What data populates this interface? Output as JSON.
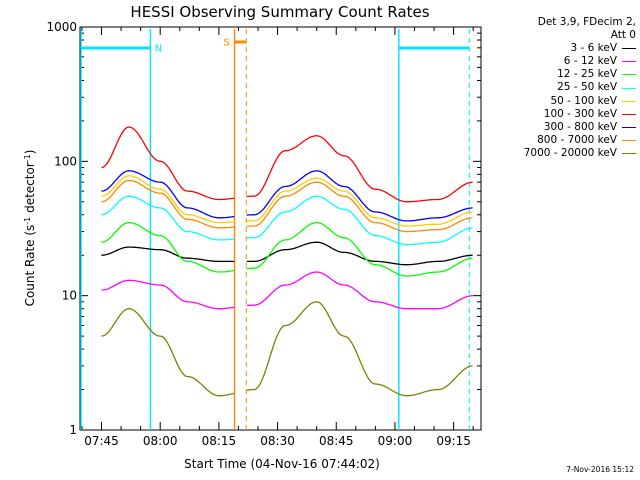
{
  "chart_data": {
    "type": "line",
    "title": "HESSI Observing Summary Count Rates",
    "xlabel": "Start Time (04-Nov-16 07:44:02)",
    "ylabel_main": "Count Rate (s",
    "ylabel_sup1": "-1",
    "ylabel_mid": " detector",
    "ylabel_sup2": "-1",
    "ylabel_end": ")",
    "yscale": "log",
    "ylim": [
      1,
      1000
    ],
    "xlim_minutes": [
      -5.5,
      97
    ],
    "x_ticks": [
      "07:45",
      "08:00",
      "08:15",
      "08:30",
      "08:45",
      "09:00",
      "09:15"
    ],
    "y_ticks": [
      "1",
      "10",
      "100",
      "1000"
    ],
    "legend_header": [
      "Det 3,9, FDecim 2,",
      "Att 0"
    ],
    "series": [
      {
        "name": "3 - 6 keV",
        "color": "#000000",
        "x": [
          0,
          7,
          15,
          22,
          30,
          39,
          47,
          55,
          62,
          70,
          78,
          86,
          95
        ],
        "y": [
          20,
          23,
          22,
          19,
          18,
          18,
          22,
          25,
          21,
          18,
          17,
          18,
          20
        ]
      },
      {
        "name": "6 - 12 keV",
        "color": "#ff00ff",
        "x": [
          0,
          7,
          15,
          22,
          30,
          39,
          47,
          55,
          62,
          70,
          78,
          86,
          95
        ],
        "y": [
          11,
          13,
          12,
          9,
          8,
          8.5,
          12,
          15,
          12,
          9,
          8,
          8,
          10
        ]
      },
      {
        "name": "12 - 25 keV",
        "color": "#00ff00",
        "x": [
          0,
          7,
          15,
          22,
          30,
          39,
          47,
          55,
          62,
          70,
          78,
          86,
          95
        ],
        "y": [
          25,
          35,
          28,
          18,
          15,
          16,
          26,
          35,
          27,
          17,
          14,
          15,
          19
        ]
      },
      {
        "name": "25 - 50 keV",
        "color": "#00ffff",
        "x": [
          0,
          7,
          15,
          22,
          30,
          39,
          47,
          55,
          62,
          70,
          78,
          86,
          95
        ],
        "y": [
          40,
          55,
          45,
          30,
          26,
          27,
          42,
          55,
          44,
          28,
          24,
          25,
          32
        ]
      },
      {
        "name": "50 - 100 keV",
        "color": "#ffcc00",
        "x": [
          0,
          7,
          15,
          22,
          30,
          39,
          47,
          55,
          62,
          70,
          78,
          86,
          95
        ],
        "y": [
          55,
          78,
          62,
          40,
          35,
          36,
          60,
          75,
          60,
          38,
          33,
          34,
          42
        ]
      },
      {
        "name": "100 - 300 keV",
        "color": "#ff0000",
        "x": [
          0,
          7,
          15,
          22,
          30,
          39,
          47,
          55,
          62,
          70,
          78,
          86,
          95
        ],
        "y": [
          90,
          180,
          100,
          60,
          52,
          55,
          120,
          155,
          110,
          62,
          50,
          52,
          70
        ]
      },
      {
        "name": "300 - 800 keV",
        "color": "#0000ff",
        "x": [
          0,
          7,
          15,
          22,
          30,
          39,
          47,
          55,
          62,
          70,
          78,
          86,
          95
        ],
        "y": [
          60,
          85,
          70,
          45,
          38,
          40,
          65,
          85,
          65,
          42,
          36,
          38,
          45
        ]
      },
      {
        "name": "800 - 7000 keV",
        "color": "#ff8800",
        "x": [
          0,
          7,
          15,
          22,
          30,
          39,
          47,
          55,
          62,
          70,
          78,
          86,
          95
        ],
        "y": [
          50,
          72,
          58,
          37,
          32,
          33,
          55,
          70,
          55,
          35,
          30,
          31,
          38
        ]
      },
      {
        "name": "7000 - 20000 keV",
        "color": "#808000",
        "x": [
          0,
          7,
          15,
          22,
          30,
          39,
          47,
          55,
          62,
          70,
          78,
          86,
          95
        ],
        "y": [
          5,
          8,
          5,
          2.5,
          1.8,
          2,
          6,
          9,
          5,
          2.2,
          1.8,
          2,
          3
        ]
      }
    ],
    "annotations": [
      {
        "label": "N",
        "color": "#00e5ff",
        "bar_from": -5.5,
        "bar_to": 12.5,
        "line_at": 12.5,
        "dashed_at": 12.5
      },
      {
        "label": "S",
        "color": "#ff8800",
        "bar_from": 34,
        "bar_to": 37,
        "line_at": 34,
        "dashed_at": 37
      },
      {
        "label": "",
        "color": "#00e5ff",
        "bar_from": 76,
        "bar_to": 94,
        "line_at": 76,
        "dashed_at": 94
      }
    ],
    "grid": false,
    "legend_position": "right"
  },
  "footer_date": "7-Nov-2016 15:12"
}
